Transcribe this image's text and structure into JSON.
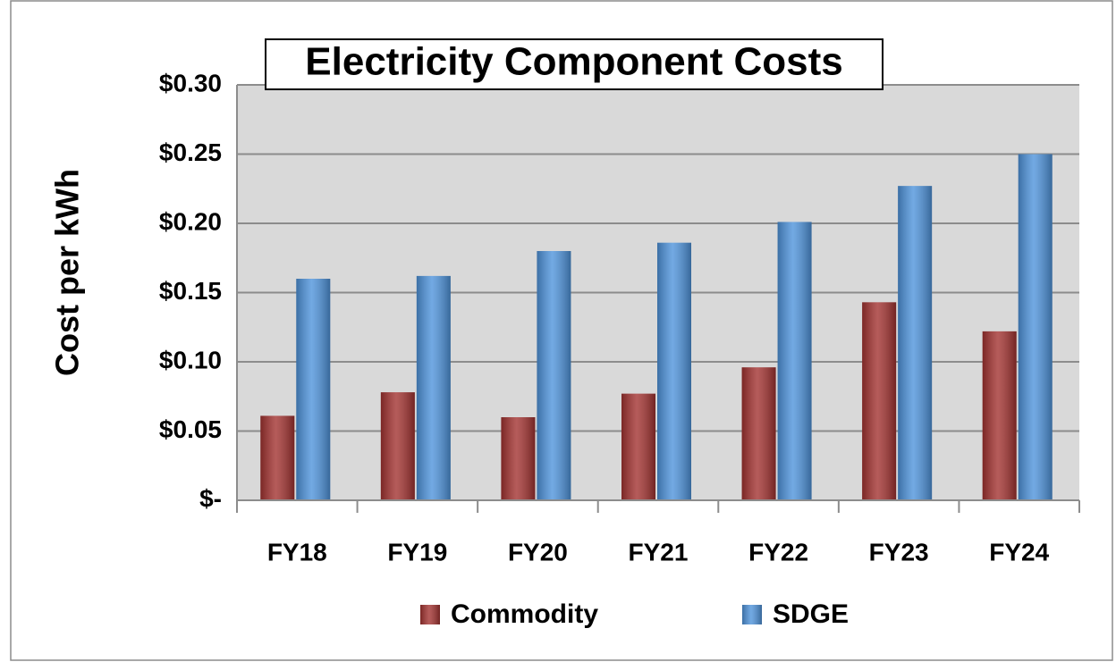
{
  "chart_data": {
    "type": "bar",
    "title": "Electricity Component Costs",
    "y_label": "Cost per kWh",
    "categories": [
      "FY18",
      "FY19",
      "FY20",
      "FY21",
      "FY22",
      "FY23",
      "FY24"
    ],
    "series": [
      {
        "name": "Commodity",
        "color": "#a33331",
        "values": [
          0.061,
          0.078,
          0.06,
          0.077,
          0.096,
          0.143,
          0.122
        ]
      },
      {
        "name": "SDGE",
        "color": "#4f94dc",
        "values": [
          0.16,
          0.162,
          0.18,
          0.186,
          0.201,
          0.227,
          0.25
        ]
      }
    ],
    "ylim": [
      0,
      0.3
    ],
    "yticks": [
      {
        "value": 0,
        "label": "$-"
      },
      {
        "value": 0.05,
        "label": "$0.05"
      },
      {
        "value": 0.1,
        "label": "$0.10"
      },
      {
        "value": 0.15,
        "label": "$0.15"
      },
      {
        "value": 0.2,
        "label": "$0.20"
      },
      {
        "value": 0.25,
        "label": "$0.25"
      },
      {
        "value": 0.3,
        "label": "$0.30"
      }
    ],
    "grid": true,
    "legend": "bottom"
  }
}
